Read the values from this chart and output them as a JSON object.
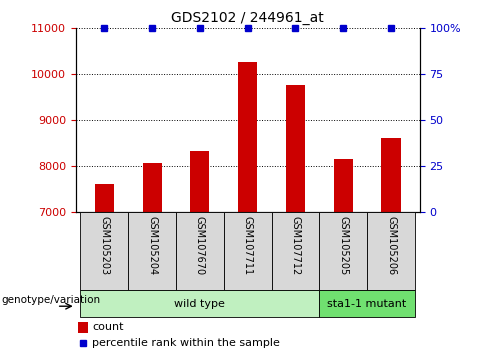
{
  "title": "GDS2102 / 244961_at",
  "samples": [
    "GSM105203",
    "GSM105204",
    "GSM107670",
    "GSM107711",
    "GSM107712",
    "GSM105205",
    "GSM105206"
  ],
  "counts": [
    7620,
    8080,
    8340,
    10270,
    9760,
    8150,
    8610
  ],
  "percentile_ranks": [
    100,
    100,
    100,
    100,
    100,
    100,
    100
  ],
  "ylim_left": [
    7000,
    11000
  ],
  "ylim_right": [
    0,
    100
  ],
  "yticks_left": [
    7000,
    8000,
    9000,
    10000,
    11000
  ],
  "yticks_right": [
    0,
    25,
    50,
    75,
    100
  ],
  "groups": [
    {
      "label": "wild type",
      "start": 0,
      "end": 4,
      "color": "#c0f0c0"
    },
    {
      "label": "sta1-1 mutant",
      "start": 5,
      "end": 6,
      "color": "#70e070"
    }
  ],
  "bar_color": "#cc0000",
  "dot_color": "#0000cc",
  "bar_width": 0.4,
  "panel_bg": "#d8d8d8",
  "tick_color_left": "#cc0000",
  "tick_color_right": "#0000cc",
  "genotype_label": "genotype/variation",
  "legend_count_color": "#cc0000",
  "legend_pct_color": "#0000cc",
  "baseline": 7000,
  "figsize": [
    4.88,
    3.54
  ],
  "dpi": 100
}
